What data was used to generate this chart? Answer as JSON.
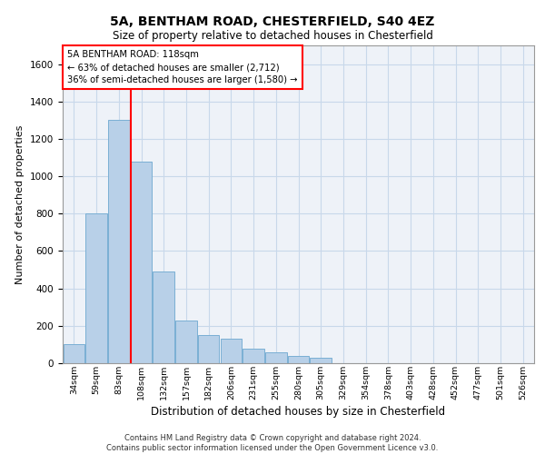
{
  "title_line1": "5A, BENTHAM ROAD, CHESTERFIELD, S40 4EZ",
  "title_line2": "Size of property relative to detached houses in Chesterfield",
  "xlabel": "Distribution of detached houses by size in Chesterfield",
  "ylabel": "Number of detached properties",
  "bar_color": "#b8d0e8",
  "bar_edge_color": "#7aafd4",
  "annotation_box_color": "#cc0000",
  "grid_color": "#c8d8ea",
  "background_color": "#eef2f8",
  "categories": [
    "34sqm",
    "59sqm",
    "83sqm",
    "108sqm",
    "132sqm",
    "157sqm",
    "182sqm",
    "206sqm",
    "231sqm",
    "255sqm",
    "280sqm",
    "305sqm",
    "329sqm",
    "354sqm",
    "378sqm",
    "403sqm",
    "428sqm",
    "452sqm",
    "477sqm",
    "501sqm",
    "526sqm"
  ],
  "values": [
    100,
    800,
    1300,
    1080,
    490,
    230,
    150,
    130,
    80,
    60,
    40,
    30,
    0,
    0,
    0,
    0,
    0,
    0,
    0,
    0,
    0
  ],
  "vline_bin_index": 3,
  "annotation_text_line1": "5A BENTHAM ROAD: 118sqm",
  "annotation_text_line2": "← 63% of detached houses are smaller (2,712)",
  "annotation_text_line3": "36% of semi-detached houses are larger (1,580) →",
  "ylim": [
    0,
    1700
  ],
  "yticks": [
    0,
    200,
    400,
    600,
    800,
    1000,
    1200,
    1400,
    1600
  ],
  "footer_line1": "Contains HM Land Registry data © Crown copyright and database right 2024.",
  "footer_line2": "Contains public sector information licensed under the Open Government Licence v3.0."
}
